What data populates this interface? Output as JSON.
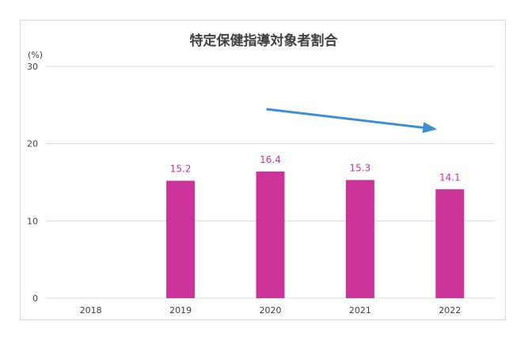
{
  "chart_data": {
    "type": "bar",
    "title": "特定保健指導対象者割合",
    "unit_label": "(%)",
    "categories": [
      "2018",
      "2019",
      "2020",
      "2021",
      "2022"
    ],
    "values": [
      null,
      15.2,
      16.4,
      15.3,
      14.1
    ],
    "data_labels": [
      "",
      "15.2",
      "16.4",
      "15.3",
      "14.1"
    ],
    "ylim": [
      0,
      30
    ],
    "yticks": [
      "0",
      "10",
      "20",
      "30"
    ],
    "grid": true,
    "legend": "none",
    "bar_color": "#cc3399",
    "label_color": "#cc3399",
    "trend_arrow": {
      "from_category": "2020",
      "to_category": "2022",
      "color": "#3e8fd0"
    }
  }
}
